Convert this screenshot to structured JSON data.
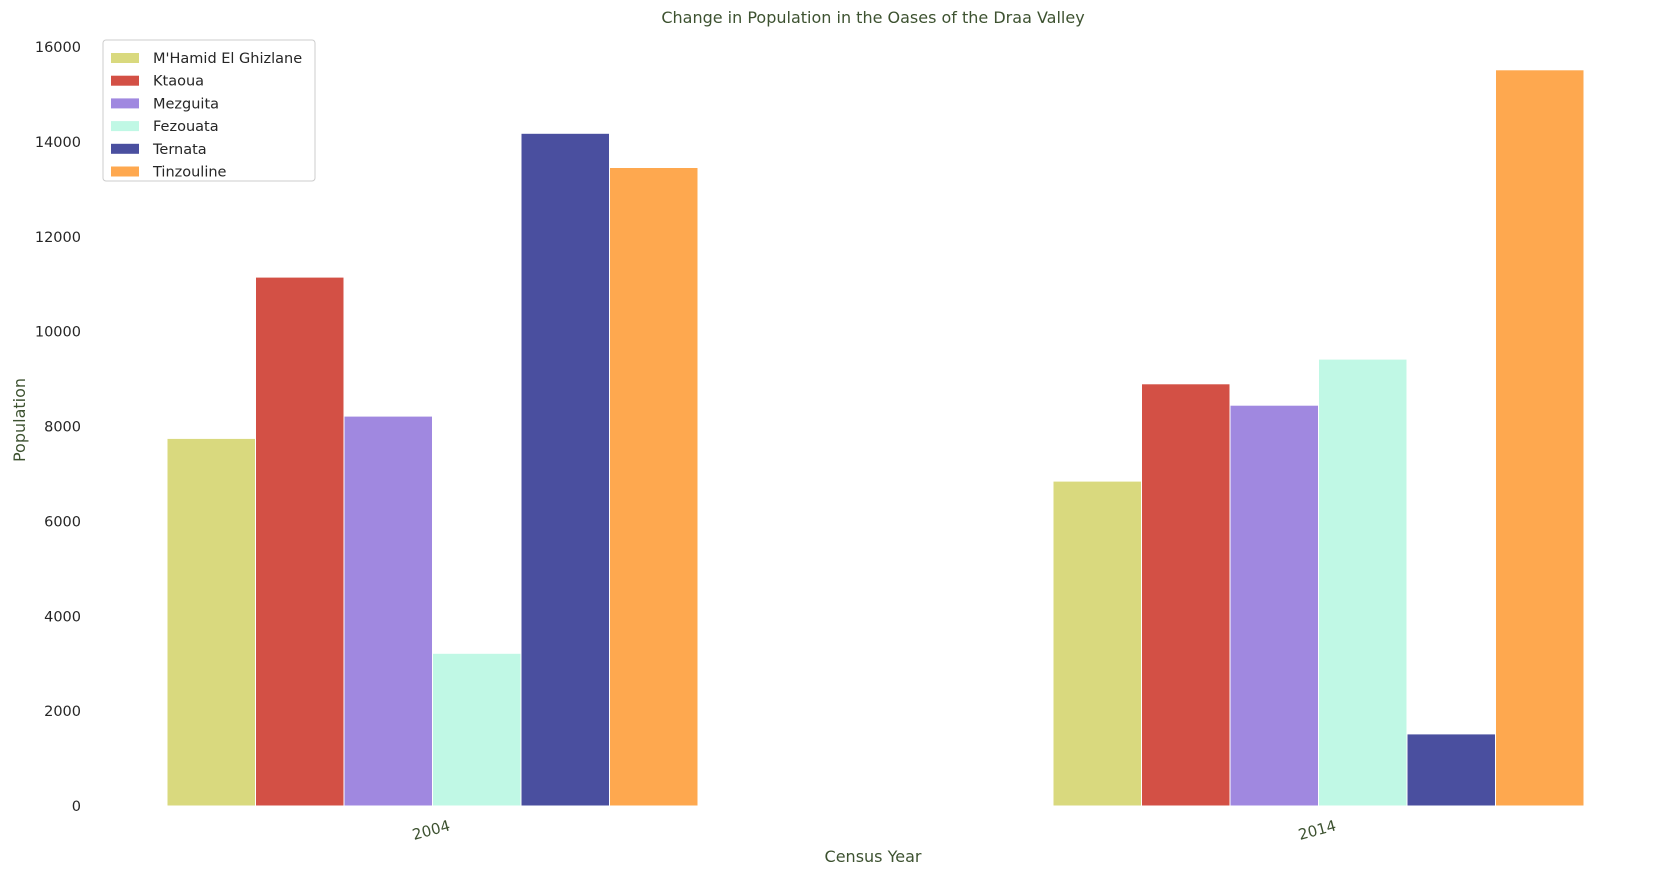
{
  "chart_data": {
    "type": "bar",
    "title": "Change in Population in the Oases of the Draa Valley",
    "xlabel": "Census Year",
    "ylabel": "Population",
    "categories": [
      "2004",
      "2014"
    ],
    "yticks": [
      "0",
      "2000",
      "4000",
      "6000",
      "8000",
      "10000",
      "12000",
      "14000",
      "16000"
    ],
    "ylim": [
      0,
      16000
    ],
    "grid": false,
    "legend_position": "top-left",
    "series": [
      {
        "name": "M'Hamid El Ghizlane",
        "color": "#d9d97e",
        "values": [
          7750,
          6850
        ]
      },
      {
        "name": "Ktaoua",
        "color": "#d35045",
        "values": [
          11150,
          8900
        ]
      },
      {
        "name": "Mezguita",
        "color": "#a088e0",
        "values": [
          8220,
          8450
        ]
      },
      {
        "name": "Fezouata",
        "color": "#c0f8e5",
        "values": [
          3220,
          9420
        ]
      },
      {
        "name": "Ternata",
        "color": "#4a4f9f",
        "values": [
          14180,
          1520
        ]
      },
      {
        "name": "Tinzouline",
        "color": "#fea84f",
        "values": [
          13460,
          15520
        ]
      }
    ]
  }
}
